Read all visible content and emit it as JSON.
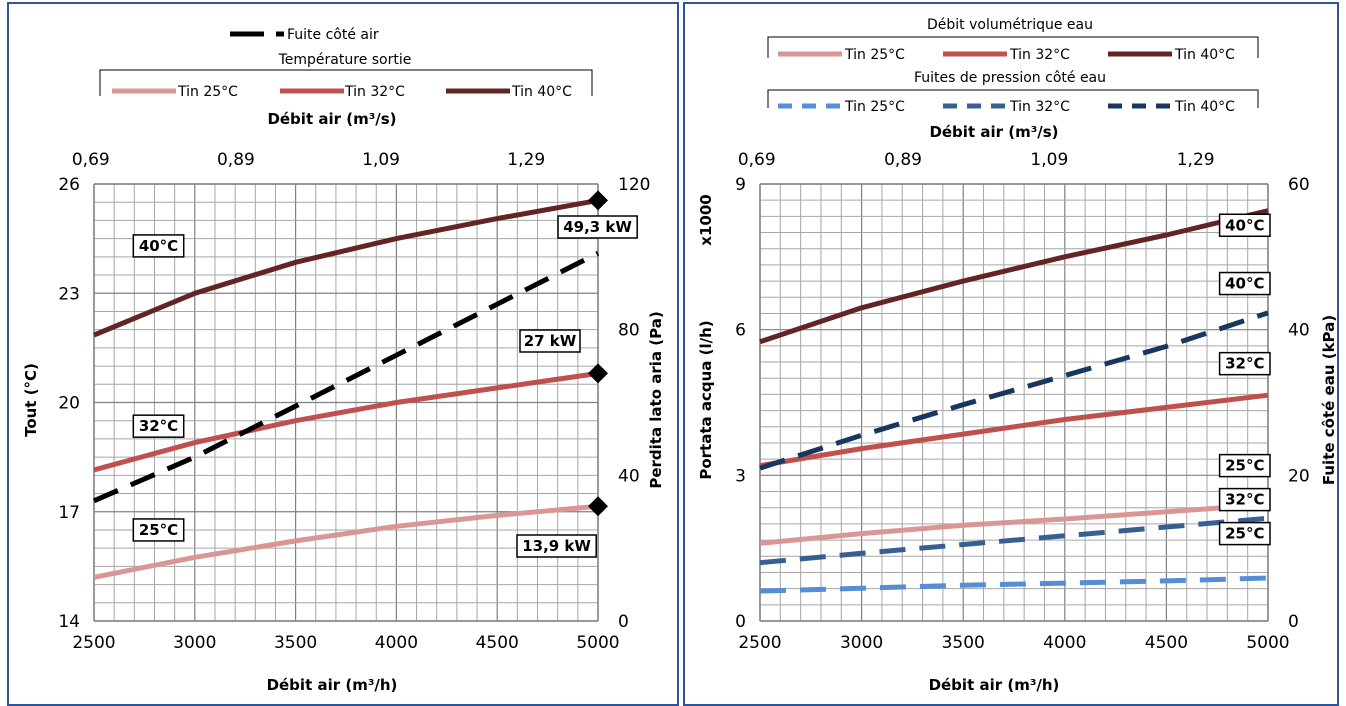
{
  "colors": {
    "tin25": "#d99694",
    "tin32": "#c0504d",
    "tin40": "#632523",
    "w25": "#558ed5",
    "w32": "#376092",
    "w40": "#17375e",
    "air_dp": "#000000",
    "frame": "#2f5597"
  },
  "chart_data": [
    {
      "type": "line",
      "title": "",
      "xlabel": "Débit air (m³/h)",
      "xlabel_top": "Débit air (m³/s)",
      "ylabel": "Tout (°C)",
      "ylabel_right": "Perdita lato aria (Pa)",
      "xlim": [
        2500,
        5000
      ],
      "x_ticks": [
        "2500",
        "3000",
        "3500",
        "4000",
        "4500",
        "5000"
      ],
      "x_top_ticks": [
        "0,69",
        "0,89",
        "1,09",
        "1,29"
      ],
      "ylim": [
        14,
        26
      ],
      "y_ticks": [
        "14",
        "17",
        "20",
        "23",
        "26"
      ],
      "y2lim": [
        0,
        120
      ],
      "y2_ticks": [
        "0",
        "40",
        "80",
        "120"
      ],
      "grid": true,
      "legend": {
        "line1": "Fuite côté air",
        "group_title": "Température sortie",
        "entries": [
          "Tin 25°C",
          "Tin 32°C",
          "Tin 40°C"
        ]
      },
      "series": [
        {
          "name": "Tin 25°C",
          "axis": "left",
          "color_key": "tin25",
          "dashed": false,
          "x": [
            2500,
            3000,
            3500,
            4000,
            4500,
            5000
          ],
          "y": [
            15.2,
            15.75,
            16.2,
            16.6,
            16.9,
            17.15
          ]
        },
        {
          "name": "Tin 32°C",
          "axis": "left",
          "color_key": "tin32",
          "dashed": false,
          "x": [
            2500,
            3000,
            3500,
            4000,
            4500,
            5000
          ],
          "y": [
            18.15,
            18.9,
            19.5,
            20.0,
            20.4,
            20.8
          ]
        },
        {
          "name": "Tin 40°C",
          "axis": "left",
          "color_key": "tin40",
          "dashed": false,
          "x": [
            2500,
            3000,
            3500,
            4000,
            4500,
            5000
          ],
          "y": [
            21.85,
            23.0,
            23.85,
            24.5,
            25.05,
            25.55
          ]
        },
        {
          "name": "Fuite côté air",
          "axis": "right",
          "color_key": "air_dp",
          "dashed": true,
          "x": [
            2500,
            3000,
            3500,
            4000,
            4500,
            5000
          ],
          "y": [
            33,
            45,
            59,
            73,
            87,
            101
          ]
        }
      ],
      "markers": [
        {
          "x": 5000,
          "y": 25.55,
          "axis": "left"
        },
        {
          "x": 5000,
          "y": 20.8,
          "axis": "left"
        },
        {
          "x": 5000,
          "y": 17.15,
          "axis": "left"
        }
      ],
      "annotations": [
        {
          "text": "40°C",
          "x": 2820,
          "y": 24.3
        },
        {
          "text": "32°C",
          "x": 2820,
          "y": 19.35
        },
        {
          "text": "25°C",
          "x": 2820,
          "y": 16.5
        },
        {
          "text": "49,3 kW",
          "x": 5235,
          "y": 24.9
        },
        {
          "text": "27 kW",
          "x": 5000,
          "y": 21.5
        },
        {
          "text": "13,9 kW",
          "x": 5000,
          "y": 16.2
        }
      ]
    },
    {
      "type": "line",
      "title": "",
      "xlabel": "Débit air (m³/h)",
      "xlabel_top": "Débit air (m³/s)",
      "ylabel": "Portata acqua (l/h)",
      "ylabel_multiplier": "x1000",
      "ylabel_right": "Fuite côté eau (kPa)",
      "xlim": [
        2500,
        5000
      ],
      "x_ticks": [
        "2500",
        "3000",
        "3500",
        "4000",
        "4500",
        "5000"
      ],
      "x_top_ticks": [
        "0,69",
        "0,89",
        "1,09",
        "1,29"
      ],
      "ylim": [
        0,
        9
      ],
      "y_ticks": [
        "0",
        "3",
        "6",
        "9"
      ],
      "y2lim": [
        0,
        60
      ],
      "y2_ticks": [
        "0",
        "20",
        "40",
        "60"
      ],
      "grid": true,
      "legend": {
        "group1_title": "Débit volumétrique eau",
        "group1_entries": [
          "Tin 25°C",
          "Tin 32°C",
          "Tin 40°C"
        ],
        "group2_title": "Fuites de pression côté eau",
        "group2_entries": [
          "Tin 25°C",
          "Tin 32°C",
          "Tin 40°C"
        ]
      },
      "series": [
        {
          "name": "Tin 25°C",
          "axis": "left",
          "color_key": "tin25",
          "dashed": false,
          "x": [
            2500,
            3000,
            3500,
            4000,
            4500,
            5000
          ],
          "y": [
            1.6,
            1.8,
            1.97,
            2.1,
            2.25,
            2.4
          ]
        },
        {
          "name": "Tin 32°C",
          "axis": "left",
          "color_key": "tin32",
          "dashed": false,
          "x": [
            2500,
            3000,
            3500,
            4000,
            4500,
            5000
          ],
          "y": [
            3.2,
            3.55,
            3.85,
            4.15,
            4.4,
            4.65
          ]
        },
        {
          "name": "Tin 40°C",
          "axis": "left",
          "color_key": "tin40",
          "dashed": false,
          "x": [
            2500,
            3000,
            3500,
            4000,
            4500,
            5000
          ],
          "y": [
            5.75,
            6.45,
            7.0,
            7.5,
            7.95,
            8.45
          ]
        },
        {
          "name": "Tin 25°C",
          "axis": "right",
          "color_key": "w25",
          "dashed": true,
          "x": [
            2500,
            3000,
            3500,
            4000,
            4500,
            5000
          ],
          "y": [
            4.1,
            4.5,
            4.9,
            5.2,
            5.5,
            5.9
          ]
        },
        {
          "name": "Tin 32°C",
          "axis": "right",
          "color_key": "w32",
          "dashed": true,
          "x": [
            2500,
            3000,
            3500,
            4000,
            4500,
            5000
          ],
          "y": [
            8.0,
            9.3,
            10.5,
            11.7,
            12.9,
            14.1
          ]
        },
        {
          "name": "Tin 40°C",
          "axis": "right",
          "color_key": "w40",
          "dashed": true,
          "x": [
            2500,
            3000,
            3500,
            4000,
            4500,
            5000
          ],
          "y": [
            21,
            25.5,
            29.7,
            33.7,
            37.7,
            42.3
          ]
        }
      ],
      "annotations": [
        {
          "text": "40°C",
          "x": 5000,
          "y": 8.15
        },
        {
          "text": "40°C",
          "x": 5000,
          "y": 6.95
        },
        {
          "text": "32°C",
          "x": 5000,
          "y": 5.3
        },
        {
          "text": "25°C",
          "x": 5000,
          "y": 3.2
        },
        {
          "text": "32°C",
          "x": 5000,
          "y": 2.5
        },
        {
          "text": "25°C",
          "x": 5000,
          "y": 1.8
        }
      ]
    }
  ]
}
